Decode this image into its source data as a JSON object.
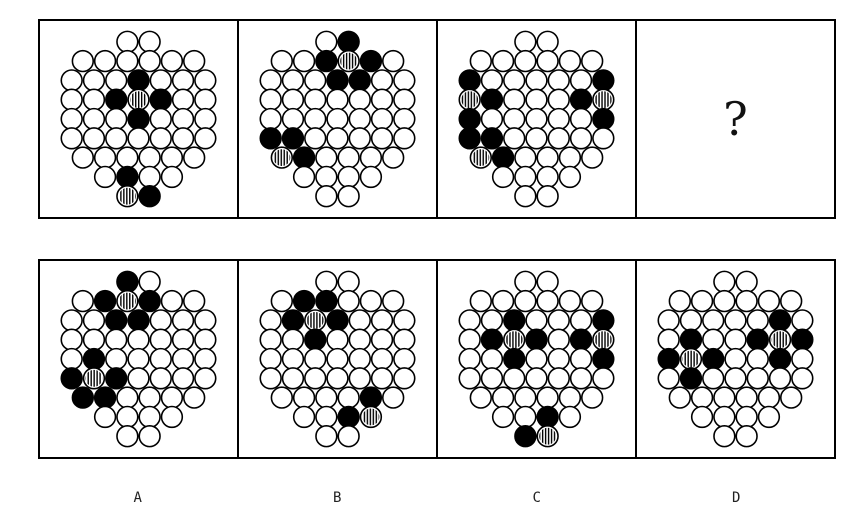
{
  "question": {
    "unknown_symbol": "?"
  },
  "options": [
    {
      "label": "A"
    },
    {
      "label": "B"
    },
    {
      "label": "C"
    },
    {
      "label": "D"
    }
  ]
}
